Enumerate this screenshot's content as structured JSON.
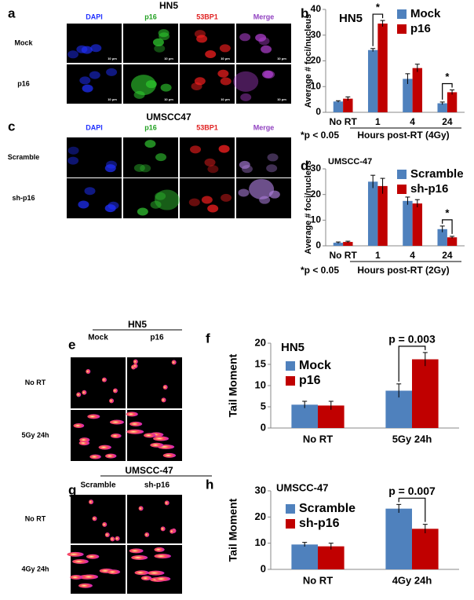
{
  "figure": {
    "panels": [
      {
        "letter": "a",
        "title": "HN5",
        "columns": [
          "DAPI",
          "p16",
          "53BP1",
          "Merge"
        ],
        "rows": [
          "Mock",
          "p16"
        ],
        "scale_label": "10 μm"
      },
      {
        "letter": "c",
        "title": "UMSCC47",
        "columns": [
          "DAPI",
          "p16",
          "53BP1",
          "Merge"
        ],
        "rows": [
          "Scramble",
          "sh-p16"
        ]
      },
      {
        "letter": "e",
        "title": "HN5",
        "columns": [
          "Mock",
          "p16"
        ],
        "rows": [
          "No RT",
          "5Gy 24h"
        ]
      },
      {
        "letter": "g",
        "title": "UMSCC-47",
        "columns": [
          "Scramble",
          "sh-p16"
        ],
        "rows": [
          "No RT",
          "4Gy 24h"
        ]
      }
    ]
  },
  "chart_data": [
    {
      "type": "bar",
      "panel": "b",
      "title": "HN5",
      "y_label": "Average # foci/nucleus",
      "x_label": "Hours post-RT (4Gy)",
      "note": "*p < 0.05",
      "categories": [
        "No RT",
        "1",
        "4",
        "24"
      ],
      "bracket_labels": [
        null,
        "*",
        null,
        "*"
      ],
      "series": [
        {
          "name": "Mock",
          "color": "#4f81bd",
          "values": [
            4.2,
            24.2,
            13,
            3.5
          ],
          "errors": [
            0.3,
            0.6,
            2,
            0.5
          ]
        },
        {
          "name": "p16",
          "color": "#c00000",
          "values": [
            5.3,
            34.5,
            17.2,
            7.8
          ],
          "errors": [
            0.7,
            1.2,
            1.5,
            0.9
          ]
        }
      ],
      "ylim": [
        0,
        40
      ],
      "yticks": [
        0,
        10,
        20,
        30,
        40
      ]
    },
    {
      "type": "bar",
      "panel": "d",
      "title": "UMSCC-47",
      "y_label": "Average # foci/nucleus",
      "x_label": "Hours post-RT (2Gy)",
      "note": "*p < 0.05",
      "categories": [
        "No RT",
        "1",
        "4",
        "24"
      ],
      "bracket_labels": [
        null,
        null,
        null,
        "*"
      ],
      "series": [
        {
          "name": "Scramble",
          "color": "#4f81bd",
          "values": [
            1.2,
            25,
            17.5,
            6.5
          ],
          "errors": [
            0.3,
            2.5,
            1.5,
            1.2
          ]
        },
        {
          "name": "sh-p16",
          "color": "#c00000",
          "values": [
            1.5,
            23.3,
            16.5,
            3.3
          ],
          "errors": [
            0.3,
            3,
            1.5,
            0.4
          ]
        }
      ],
      "ylim": [
        0,
        30
      ],
      "yticks": [
        0,
        10,
        20,
        30
      ]
    },
    {
      "type": "bar",
      "panel": "f",
      "title": "HN5",
      "y_label": "Tail Moment",
      "categories": [
        "No RT",
        "5Gy 24h"
      ],
      "bracket_labels": [
        null,
        "p = 0.003"
      ],
      "series": [
        {
          "name": "Mock",
          "color": "#4f81bd",
          "values": [
            5.5,
            8.8
          ],
          "errors": [
            0.8,
            1.6
          ]
        },
        {
          "name": "p16",
          "color": "#c00000",
          "values": [
            5.3,
            16.2
          ],
          "errors": [
            1,
            1.6
          ]
        }
      ],
      "ylim": [
        0,
        20
      ],
      "yticks": [
        0,
        5,
        10,
        15,
        20
      ]
    },
    {
      "type": "bar",
      "panel": "h",
      "title": "UMSCC-47",
      "y_label": "Tail Moment",
      "categories": [
        "No RT",
        "4Gy 24h"
      ],
      "bracket_labels": [
        null,
        "p = 0.007"
      ],
      "series": [
        {
          "name": "Scramble",
          "color": "#4f81bd",
          "values": [
            9.5,
            23.2
          ],
          "errors": [
            0.8,
            1.6
          ]
        },
        {
          "name": "sh-p16",
          "color": "#c00000",
          "values": [
            8.8,
            15.5
          ],
          "errors": [
            1.2,
            1.7
          ]
        }
      ],
      "ylim": [
        0,
        30
      ],
      "yticks": [
        0,
        10,
        20,
        30
      ]
    }
  ]
}
